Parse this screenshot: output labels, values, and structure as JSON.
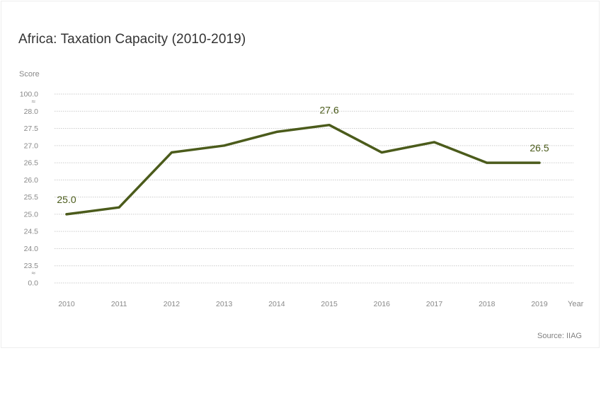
{
  "title": "Africa: Taxation Capacity (2010-2019)",
  "source": "Source: IIAG",
  "colors": {
    "line": "#4b5b1b",
    "grid": "#cccccc",
    "axis_text": "#888888"
  },
  "chart_data": {
    "type": "line",
    "title": "Africa: Taxation Capacity (2010-2019)",
    "xlabel": "Year",
    "ylabel": "Score",
    "x": [
      "2010",
      "2011",
      "2012",
      "2013",
      "2014",
      "2015",
      "2016",
      "2017",
      "2018",
      "2019"
    ],
    "series": [
      {
        "name": "Taxation Capacity",
        "values": [
          25.0,
          25.2,
          26.8,
          27.0,
          27.4,
          27.6,
          26.8,
          27.1,
          26.5,
          26.5
        ]
      }
    ],
    "y_ticks": [
      "100.0",
      "28.0",
      "27.5",
      "27.0",
      "26.5",
      "26.0",
      "25.5",
      "25.0",
      "24.5",
      "24.0",
      "23.5",
      "0.0"
    ],
    "ylim": [
      23.5,
      28.0
    ],
    "axis_break": true,
    "point_labels": [
      {
        "index": 0,
        "text": "25.0"
      },
      {
        "index": 5,
        "text": "27.6"
      },
      {
        "index": 9,
        "text": "26.5"
      }
    ],
    "grid": true
  }
}
